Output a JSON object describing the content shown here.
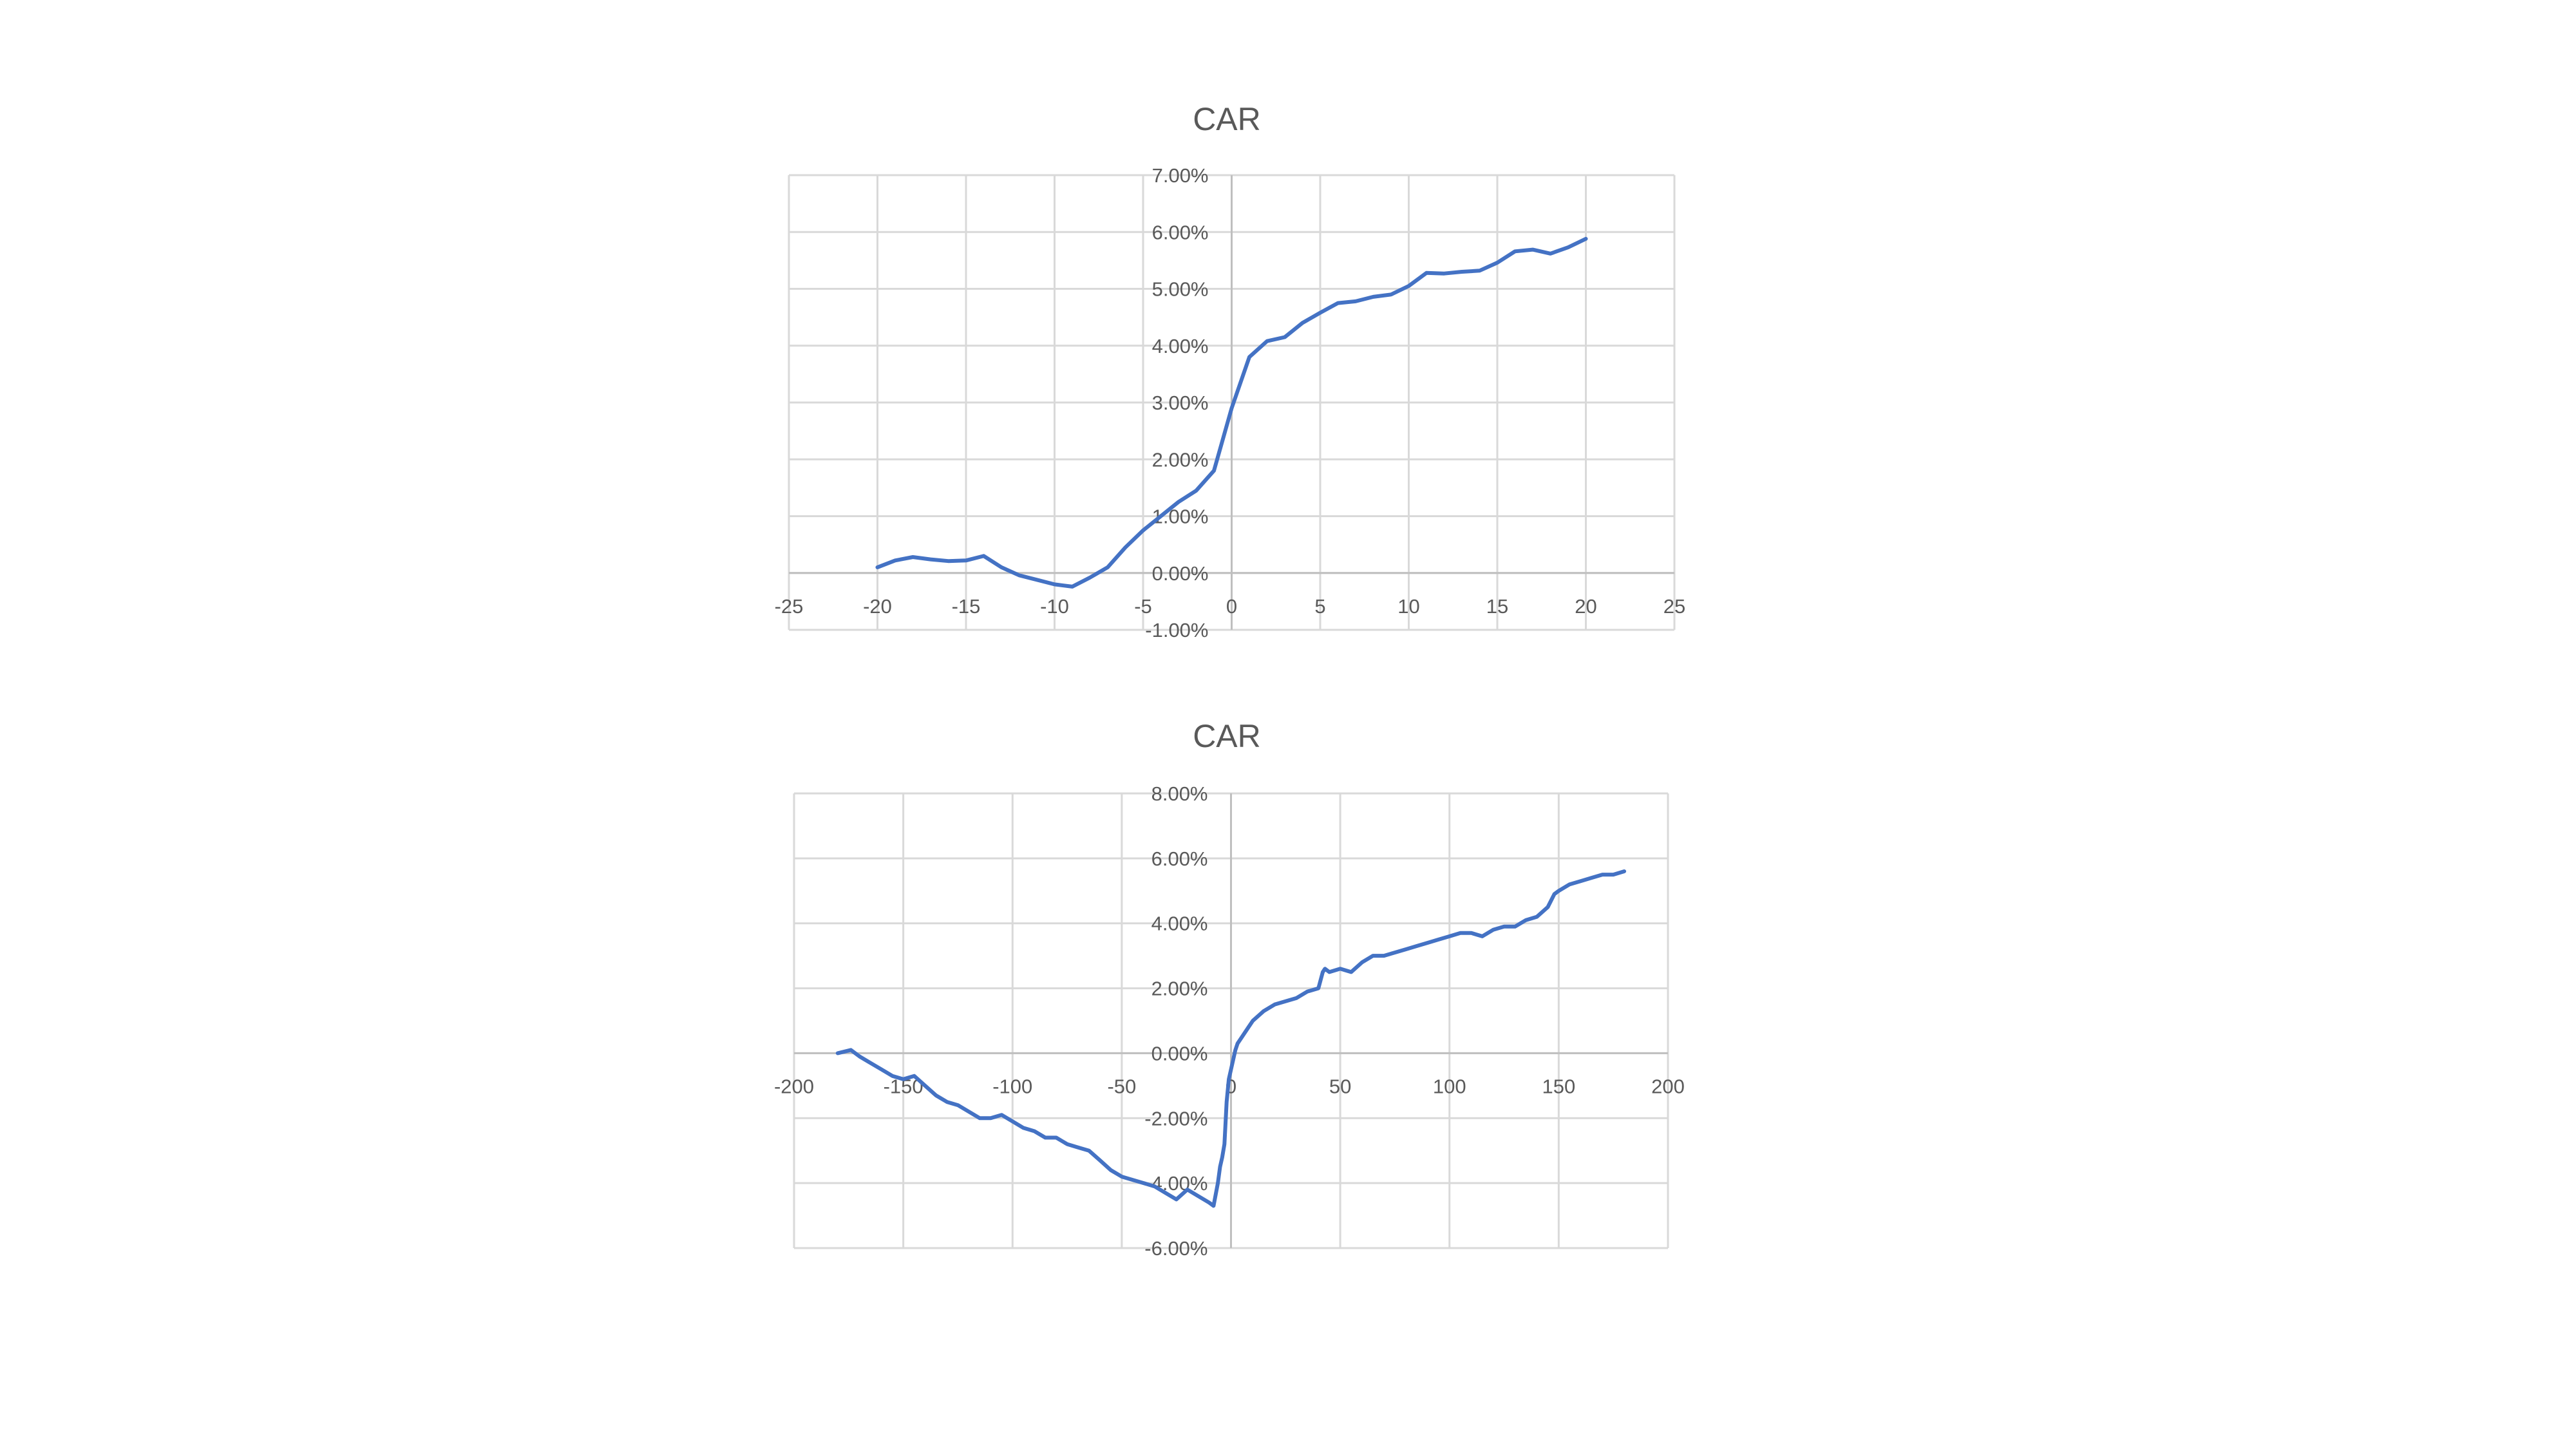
{
  "chart_data": [
    {
      "type": "line",
      "title": "CAR",
      "xlim": [
        -25,
        25
      ],
      "ylim": [
        -1,
        7
      ],
      "x_ticks": [
        -25,
        -20,
        -15,
        -10,
        -5,
        0,
        5,
        10,
        15,
        20,
        25
      ],
      "y_ticks": [
        -1,
        0,
        1,
        2,
        3,
        4,
        5,
        6,
        7
      ],
      "x_tick_labels": [
        "-25",
        "-20",
        "-15",
        "-10",
        "-5",
        "0",
        "5",
        "10",
        "15",
        "20",
        "25"
      ],
      "y_tick_labels": [
        "-1.00%",
        "0.00%",
        "1.00%",
        "2.00%",
        "3.00%",
        "4.00%",
        "5.00%",
        "6.00%",
        "7.00%"
      ],
      "grid": true,
      "series": [
        {
          "name": "CAR",
          "color": "#4472c4",
          "x": [
            -20,
            -19,
            -18,
            -17,
            -16,
            -15,
            -14,
            -13,
            -12,
            -11,
            -10,
            -9,
            -8,
            -7,
            -6,
            -5,
            -4,
            -3,
            -2,
            -1,
            0,
            1,
            2,
            3,
            4,
            5,
            6,
            7,
            8,
            9,
            10,
            11,
            12,
            13,
            14,
            15,
            16,
            17,
            18,
            19,
            20
          ],
          "y": [
            0.1,
            0.22,
            0.28,
            0.24,
            0.21,
            0.22,
            0.3,
            0.1,
            -0.04,
            -0.12,
            -0.2,
            -0.24,
            -0.08,
            0.1,
            0.45,
            0.75,
            1.0,
            1.25,
            1.45,
            1.8,
            2.9,
            3.8,
            4.08,
            4.15,
            4.4,
            4.58,
            4.75,
            4.78,
            4.86,
            4.9,
            5.05,
            5.28,
            5.27,
            5.3,
            5.32,
            5.46,
            5.66,
            5.69,
            5.62,
            5.73,
            5.88
          ]
        }
      ]
    },
    {
      "type": "line",
      "title": "CAR",
      "xlim": [
        -200,
        200
      ],
      "ylim": [
        -6,
        8
      ],
      "x_ticks": [
        -200,
        -150,
        -100,
        -50,
        0,
        50,
        100,
        150,
        200
      ],
      "y_ticks": [
        -6,
        -4,
        -2,
        0,
        2,
        4,
        6,
        8
      ],
      "x_tick_labels": [
        "-200",
        "-150",
        "-100",
        "-50",
        "0",
        "50",
        "100",
        "150",
        "200"
      ],
      "y_tick_labels": [
        "-6.00%",
        "-4.00%",
        "-2.00%",
        "0.00%",
        "2.00%",
        "4.00%",
        "6.00%",
        "8.00%"
      ],
      "grid": true,
      "series": [
        {
          "name": "CAR",
          "color": "#4472c4",
          "x": [
            -180,
            -174,
            -170,
            -165,
            -160,
            -155,
            -150,
            -145,
            -140,
            -135,
            -130,
            -125,
            -120,
            -115,
            -110,
            -105,
            -100,
            -95,
            -90,
            -85,
            -80,
            -75,
            -70,
            -65,
            -60,
            -55,
            -50,
            -45,
            -40,
            -35,
            -30,
            -25,
            -20,
            -15,
            -10,
            -8,
            -6,
            -5,
            -4,
            -3,
            -2,
            -1,
            0,
            1,
            2,
            3,
            5,
            8,
            10,
            15,
            20,
            25,
            30,
            35,
            40,
            42,
            43,
            45,
            50,
            55,
            60,
            65,
            70,
            75,
            80,
            85,
            90,
            95,
            100,
            105,
            110,
            115,
            120,
            125,
            130,
            135,
            140,
            145,
            148,
            150,
            155,
            160,
            165,
            170,
            175,
            180
          ],
          "y": [
            0.0,
            0.1,
            -0.1,
            -0.3,
            -0.5,
            -0.7,
            -0.8,
            -0.7,
            -1.0,
            -1.3,
            -1.5,
            -1.6,
            -1.8,
            -2.0,
            -2.0,
            -1.9,
            -2.1,
            -2.3,
            -2.4,
            -2.6,
            -2.6,
            -2.8,
            -2.9,
            -3.0,
            -3.3,
            -3.6,
            -3.8,
            -3.9,
            -4.0,
            -4.1,
            -4.3,
            -4.5,
            -4.2,
            -4.4,
            -4.6,
            -4.7,
            -4.0,
            -3.5,
            -3.2,
            -2.8,
            -1.5,
            -0.8,
            -0.5,
            -0.2,
            0.1,
            0.3,
            0.5,
            0.8,
            1.0,
            1.3,
            1.5,
            1.6,
            1.7,
            1.9,
            2.0,
            2.5,
            2.6,
            2.5,
            2.6,
            2.5,
            2.8,
            3.0,
            3.0,
            3.1,
            3.2,
            3.3,
            3.4,
            3.5,
            3.6,
            3.7,
            3.7,
            3.6,
            3.8,
            3.9,
            3.9,
            4.1,
            4.2,
            4.5,
            4.9,
            5.0,
            5.2,
            5.3,
            5.4,
            5.5,
            5.5,
            5.6
          ]
        }
      ]
    }
  ]
}
